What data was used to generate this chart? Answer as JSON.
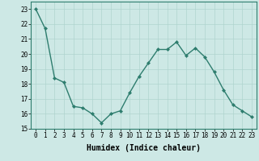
{
  "x": [
    0,
    1,
    2,
    3,
    4,
    5,
    6,
    7,
    8,
    9,
    10,
    11,
    12,
    13,
    14,
    15,
    16,
    17,
    18,
    19,
    20,
    21,
    22,
    23
  ],
  "y": [
    23.0,
    21.7,
    18.4,
    18.1,
    16.5,
    16.4,
    16.0,
    15.4,
    16.0,
    16.2,
    17.4,
    18.5,
    19.4,
    20.3,
    20.3,
    20.8,
    19.9,
    20.4,
    19.8,
    18.8,
    17.6,
    16.6,
    16.2,
    15.8
  ],
  "line_color": "#2e7d6e",
  "marker": "D",
  "markersize": 2.0,
  "linewidth": 1.0,
  "xlabel": "Humidex (Indice chaleur)",
  "xlim": [
    -0.5,
    23.5
  ],
  "ylim": [
    15,
    23.5
  ],
  "yticks": [
    15,
    16,
    17,
    18,
    19,
    20,
    21,
    22,
    23
  ],
  "xticks": [
    0,
    1,
    2,
    3,
    4,
    5,
    6,
    7,
    8,
    9,
    10,
    11,
    12,
    13,
    14,
    15,
    16,
    17,
    18,
    19,
    20,
    21,
    22,
    23
  ],
  "bg_color": "#cde8e5",
  "grid_color": "#afd4cf",
  "tick_label_size": 5.5,
  "xlabel_size": 7.0
}
